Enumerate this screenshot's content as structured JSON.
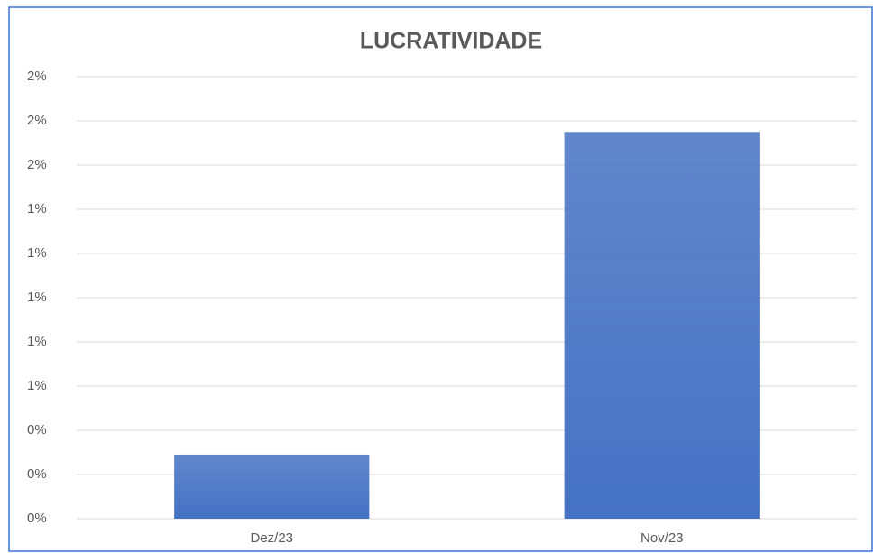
{
  "chart_data": {
    "type": "bar",
    "title": "LUCRATIVIDADE",
    "categories": [
      "Dez/23",
      "Nov/23"
    ],
    "values": [
      0.29,
      1.75
    ],
    "color": "#4472c4",
    "ylim": [
      0,
      2.0
    ],
    "yticks": [
      {
        "value": 0,
        "label": "0%"
      },
      {
        "value": 0.2,
        "label": "0%"
      },
      {
        "value": 0.4,
        "label": "0%"
      },
      {
        "value": 0.6,
        "label": "1%"
      },
      {
        "value": 0.8,
        "label": "1%"
      },
      {
        "value": 1.0,
        "label": "1%"
      },
      {
        "value": 1.2,
        "label": "1%"
      },
      {
        "value": 1.4,
        "label": "1%"
      },
      {
        "value": 1.6,
        "label": "2%"
      },
      {
        "value": 1.8,
        "label": "2%"
      },
      {
        "value": 2.0,
        "label": "2%"
      }
    ],
    "grid": true
  }
}
